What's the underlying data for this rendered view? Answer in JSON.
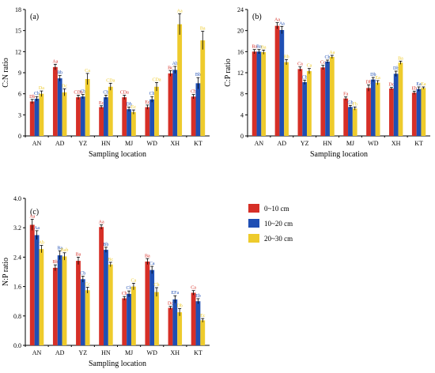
{
  "colors": {
    "depth1": "#d62f27",
    "depth2": "#1f4fb4",
    "depth3": "#eecb2c",
    "sig_default": "#000000"
  },
  "legend": {
    "items": [
      "0~10 cm",
      "10~20 cm",
      "20~30 cm"
    ]
  },
  "chart_data": [
    {
      "type": "bar",
      "panel": "(a)",
      "ylabel": "C:N ratio",
      "xlabel": "Sampling location",
      "ylim": [
        0,
        18
      ],
      "yticks": [
        0,
        3,
        6,
        9,
        12,
        15,
        18
      ],
      "categories": [
        "AN",
        "AD",
        "YZ",
        "HN",
        "MJ",
        "WD",
        "XH",
        "KT"
      ],
      "series": [
        {
          "name": "0~10 cm",
          "values": [
            4.9,
            9.8,
            5.5,
            4.1,
            5.5,
            4.1,
            8.9,
            5.6
          ],
          "errors": [
            0.3,
            0.4,
            0.3,
            0.2,
            0.3,
            0.3,
            0.4,
            0.3
          ],
          "labels": [
            "Db",
            "Aa",
            "CDb",
            "Ec",
            "CDa",
            "Ec",
            "Bc",
            "Cb"
          ]
        },
        {
          "name": "10~20 cm",
          "values": [
            5.3,
            8.2,
            5.6,
            5.5,
            3.8,
            5.2,
            9.4,
            7.5
          ],
          "errors": [
            0.3,
            0.4,
            0.3,
            0.3,
            0.3,
            0.4,
            0.5,
            0.8
          ],
          "labels": [
            "Cb",
            "Bb",
            "Cb",
            "Cb",
            "Db",
            "Cb",
            "Ab",
            "Bb"
          ]
        },
        {
          "name": "20~30 cm",
          "values": [
            6.0,
            6.2,
            8.1,
            7.0,
            3.4,
            7.0,
            15.9,
            13.6
          ],
          "errors": [
            0.4,
            0.5,
            0.8,
            0.5,
            0.3,
            0.6,
            1.5,
            1.3
          ],
          "labels": [
            "Da",
            "Dc",
            "Ca",
            "CDa",
            "Ec",
            "CDa",
            "Aa",
            "Ba"
          ]
        }
      ]
    },
    {
      "type": "bar",
      "panel": "(b)",
      "ylabel": "C:P ratio",
      "xlabel": "Sampling location",
      "ylim": [
        0,
        24
      ],
      "yticks": [
        0,
        4,
        8,
        12,
        16,
        20,
        24
      ],
      "categories": [
        "AN",
        "AD",
        "YZ",
        "HN",
        "MJ",
        "WD",
        "XH",
        "KT"
      ],
      "series": [
        {
          "name": "0~10 cm",
          "values": [
            16.0,
            20.9,
            12.7,
            13.0,
            7.1,
            9.1,
            9.0,
            8.2
          ],
          "errors": [
            0.4,
            0.6,
            0.4,
            0.4,
            0.3,
            0.6,
            0.2,
            0.3
          ],
          "labels": [
            "Ba",
            "Aa",
            "Ca",
            "Cc",
            "Fa",
            "Db",
            "Dc",
            "Eb"
          ]
        },
        {
          "name": "10~20 cm",
          "values": [
            16.0,
            20.1,
            10.2,
            14.1,
            5.5,
            10.7,
            11.8,
            8.9
          ],
          "errors": [
            0.4,
            0.7,
            0.4,
            0.3,
            0.3,
            0.4,
            0.5,
            0.4
          ],
          "labels": [
            "Ba",
            "Aa",
            "Cb",
            "Cb",
            "Gb",
            "Db",
            "Db",
            "Ea"
          ]
        },
        {
          "name": "20~30 cm",
          "values": [
            15.9,
            14.0,
            12.3,
            15.0,
            5.2,
            10.1,
            13.9,
            9.1
          ],
          "errors": [
            0.4,
            0.5,
            0.5,
            0.3,
            0.3,
            0.4,
            0.3,
            0.2
          ],
          "labels": [
            "Ba",
            "Bb",
            "Ca",
            "Aa",
            "Fb",
            "Ea",
            "Ba",
            "Ea"
          ]
        }
      ]
    },
    {
      "type": "bar",
      "panel": "(c)",
      "ylabel": "N:P ratio",
      "xlabel": "Sampling location",
      "ylim": [
        0,
        4.0
      ],
      "yticks": [
        0.0,
        0.8,
        1.6,
        2.4,
        3.2,
        4.0
      ],
      "categories": [
        "AN",
        "AD",
        "YZ",
        "HN",
        "MJ",
        "WD",
        "XH",
        "KT"
      ],
      "series": [
        {
          "name": "0~10 cm",
          "values": [
            3.28,
            2.11,
            2.3,
            3.22,
            1.28,
            2.28,
            1.02,
            1.43
          ],
          "errors": [
            0.15,
            0.08,
            0.1,
            0.06,
            0.05,
            0.08,
            0.04,
            0.06
          ],
          "labels": [
            "Aa",
            "Bb",
            "Ba",
            "Aa",
            "Cb",
            "Ba",
            "Dc",
            "Ca"
          ]
        },
        {
          "name": "10~20 cm",
          "values": [
            3.0,
            2.45,
            1.8,
            2.6,
            1.4,
            2.05,
            1.25,
            1.2
          ],
          "errors": [
            0.12,
            0.12,
            0.08,
            0.07,
            0.08,
            0.1,
            0.1,
            0.07
          ],
          "labels": [
            "Aa",
            "Ba",
            "Cb",
            "Bb",
            "Cb",
            "Ca",
            "EFa",
            "Eb"
          ]
        },
        {
          "name": "20~30 cm",
          "values": [
            2.62,
            2.42,
            1.5,
            2.2,
            1.6,
            1.45,
            0.9,
            0.68
          ],
          "errors": [
            0.1,
            0.1,
            0.08,
            0.06,
            0.09,
            0.12,
            0.1,
            0.05
          ],
          "labels": [
            "Ab",
            "Bab",
            "Cc",
            "Bc",
            "Ca",
            "Cb",
            "Db",
            "Ec"
          ]
        }
      ]
    }
  ]
}
